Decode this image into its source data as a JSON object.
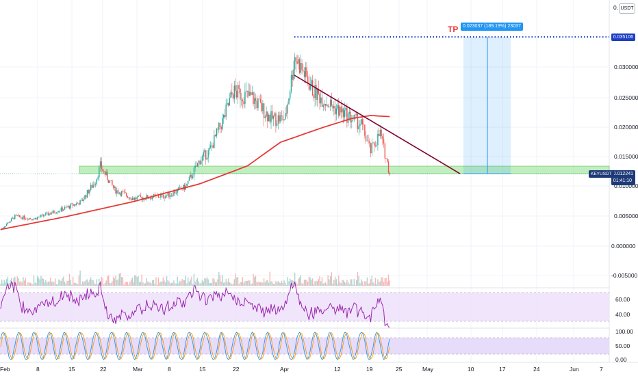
{
  "currency": "USDT",
  "symbol": "KEYUSDT",
  "tp_label": "TP",
  "measure_text": "0.023037 (189.19%) 23037",
  "current_price": "0.012241",
  "countdown": "01:41:10",
  "target_price": "0.035106",
  "price_axis": {
    "ticks": [
      "0.030000",
      "0.025000",
      "0.020000",
      "0.015000",
      "0.010000",
      "0.005000",
      "0.000000",
      "-0.005000"
    ],
    "top_label": "0."
  },
  "rsi_axis": {
    "ticks": [
      "60.00",
      "40.00"
    ]
  },
  "stoch_axis": {
    "ticks": [
      "100.00",
      "50.00",
      "0.00"
    ]
  },
  "date_axis": {
    "ticks": [
      "Feb",
      "8",
      "15",
      "22",
      "Mar",
      "8",
      "15",
      "22",
      "Apr",
      "12",
      "19",
      "25",
      "May",
      "10",
      "17",
      "24",
      "Jun",
      "7"
    ]
  },
  "colors": {
    "up": "#26a69a",
    "down": "#ef5350",
    "ma": "#e53935",
    "trend": "#800030",
    "zone": "#8ee08a",
    "rsi": "#9c27b0",
    "rsi_bg": "#ede0fa",
    "stoch_bg": "#e4d6fa",
    "measure": "#2196f3",
    "symbol_tag": "#1e3a78"
  },
  "chart_data": {
    "type": "candlestick",
    "series": [
      {
        "name": "KEYUSDT",
        "type": "candlestick"
      },
      {
        "name": "Moving average",
        "type": "line"
      },
      {
        "name": "Volume",
        "type": "bar"
      },
      {
        "name": "RSI",
        "type": "line"
      },
      {
        "name": "Stoch RSI",
        "type": "line"
      }
    ],
    "price_path": [
      [
        "Feb 1",
        0.0028
      ],
      [
        "Feb 4",
        0.005
      ],
      [
        "Feb 8",
        0.0046
      ],
      [
        "Feb 15",
        0.0065
      ],
      [
        "Feb 18",
        0.0075
      ],
      [
        "Feb 21",
        0.011
      ],
      [
        "Feb 22",
        0.0135
      ],
      [
        "Feb 25",
        0.0095
      ],
      [
        "Mar 1",
        0.008
      ],
      [
        "Mar 8",
        0.0085
      ],
      [
        "Mar 12",
        0.01
      ],
      [
        "Mar 15",
        0.0145
      ],
      [
        "Mar 17",
        0.016
      ],
      [
        "Mar 20",
        0.0215
      ],
      [
        "Mar 22",
        0.026
      ],
      [
        "Mar 26",
        0.025
      ],
      [
        "Mar 30",
        0.0215
      ],
      [
        "Apr 2",
        0.0215
      ],
      [
        "Apr 4",
        0.032
      ],
      [
        "Apr 8",
        0.026
      ],
      [
        "Apr 12",
        0.0235
      ],
      [
        "Apr 16",
        0.0215
      ],
      [
        "Apr 18",
        0.0205
      ],
      [
        "Apr 20",
        0.016
      ],
      [
        "Apr 22",
        0.019
      ],
      [
        "Apr 24",
        0.0122
      ]
    ],
    "moving_average": [
      [
        "Feb 1",
        0.0028
      ],
      [
        "Feb 15",
        0.005
      ],
      [
        "Mar 1",
        0.0075
      ],
      [
        "Mar 15",
        0.0105
      ],
      [
        "Mar 25",
        0.0135
      ],
      [
        "Apr 1",
        0.0175
      ],
      [
        "Apr 10",
        0.02
      ],
      [
        "Apr 16",
        0.0215
      ],
      [
        "Apr 20",
        0.022
      ],
      [
        "Apr 24",
        0.0218
      ]
    ],
    "trendline": [
      [
        "Apr 4",
        0.0287
      ],
      [
        "May 8",
        0.0122
      ]
    ],
    "support_zone": [
      0.0122,
      0.0133
    ],
    "target": 0.035106,
    "current": 0.012241,
    "rsi_levels": [
      70,
      30
    ],
    "stoch_levels": [
      80,
      20
    ],
    "grid": true
  }
}
